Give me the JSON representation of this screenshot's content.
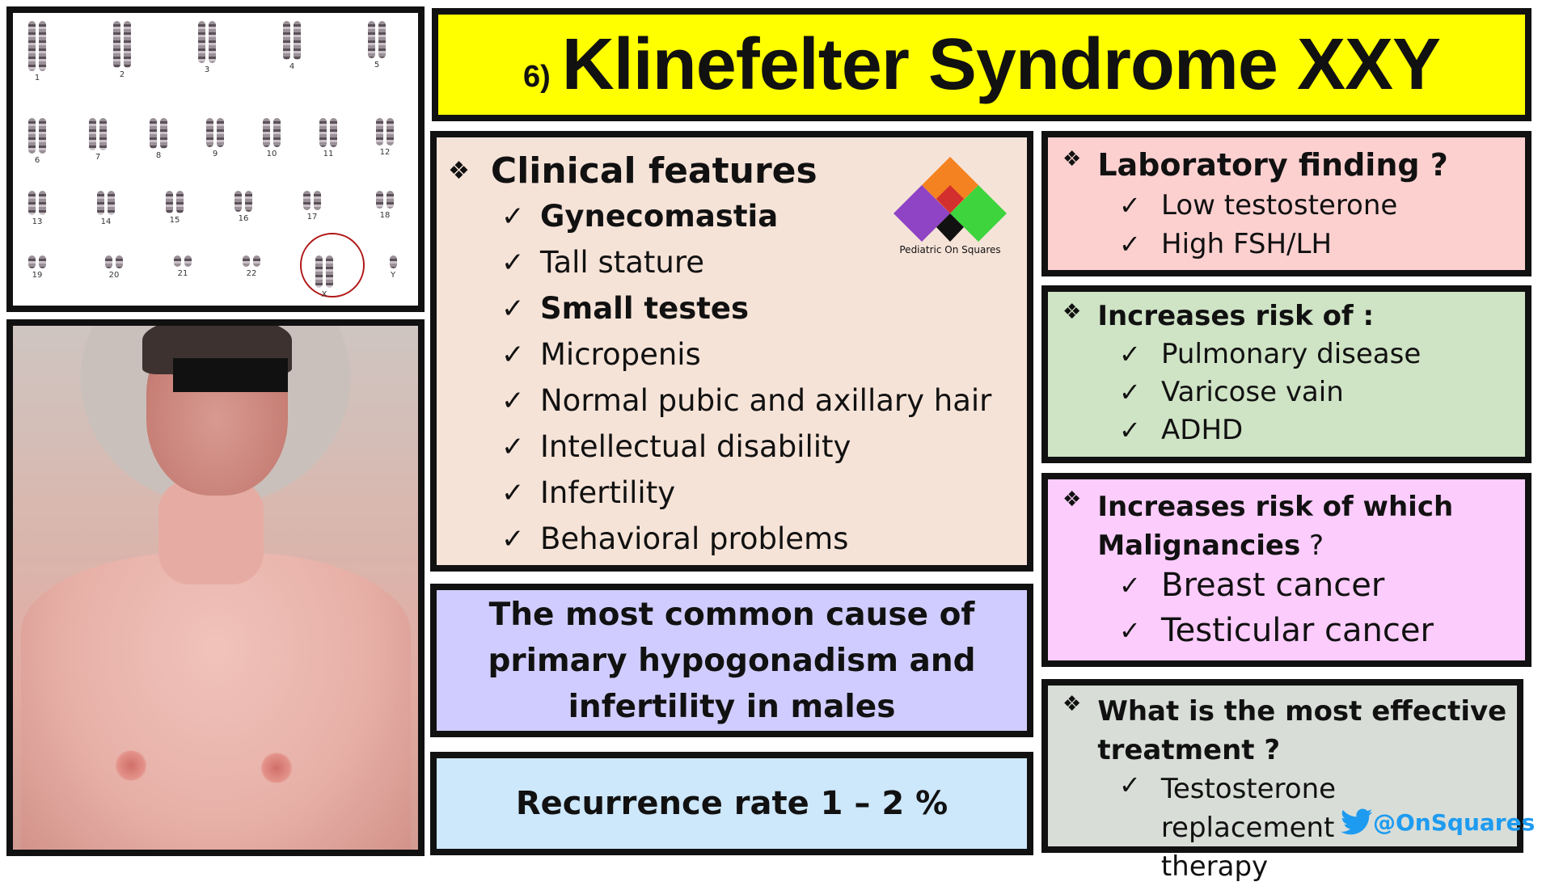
{
  "title": {
    "number": "6)",
    "text": "Klinefelter Syndrome XXY"
  },
  "karyotype": {
    "labels": [
      "1",
      "2",
      "3",
      "4",
      "5",
      "6",
      "7",
      "8",
      "9",
      "10",
      "11",
      "12",
      "13",
      "14",
      "15",
      "16",
      "17",
      "18",
      "19",
      "20",
      "21",
      "22",
      "X",
      "Y"
    ]
  },
  "clinical": {
    "heading": "Clinical features",
    "items": [
      "Gynecomastia",
      "Tall stature",
      "Small testes",
      "Micropenis",
      "Normal pubic and axillary hair",
      "Intellectual disability",
      "Infertility",
      "Behavioral problems"
    ],
    "logo_text": "Pediatric On Squares",
    "logo_colors": [
      "#f58220",
      "#8e44c4",
      "#3dd43d",
      "#d32f2f",
      "#111111"
    ]
  },
  "cause": {
    "text": "The most common cause of primary hypogonadism and infertility in males"
  },
  "recurrence": {
    "text": "Recurrence rate 1 – 2 %"
  },
  "lab": {
    "heading": "Laboratory finding ?",
    "items": [
      "Low testosterone",
      "High FSH/LH"
    ]
  },
  "risk": {
    "heading": "Increases risk of :",
    "items": [
      "Pulmonary disease",
      "Varicose vain",
      "ADHD"
    ]
  },
  "malignancy": {
    "heading_line1": "Increases risk of which",
    "heading_line2": "Malignancies",
    "heading_suffix": " ?",
    "items": [
      "Breast cancer",
      "Testicular cancer"
    ]
  },
  "treatment": {
    "heading_line1": "What is the most effective",
    "heading_line2": "treatment ?",
    "item_line1": "Testosterone replacement",
    "item_line2": "therapy",
    "twitter_handle": "@OnSquares"
  },
  "colors": {
    "title_bg": "#ffff00",
    "clinical_bg": "#f6e3d8",
    "cause_bg": "#d0ccff",
    "recurrence_bg": "#cde7fb",
    "lab_bg": "#fdd0d0",
    "risk_bg": "#cfe3c5",
    "malignancy_bg": "#fbccfc",
    "treatment_bg": "#d9ddd8",
    "twitter_blue": "#1d9bf0"
  }
}
